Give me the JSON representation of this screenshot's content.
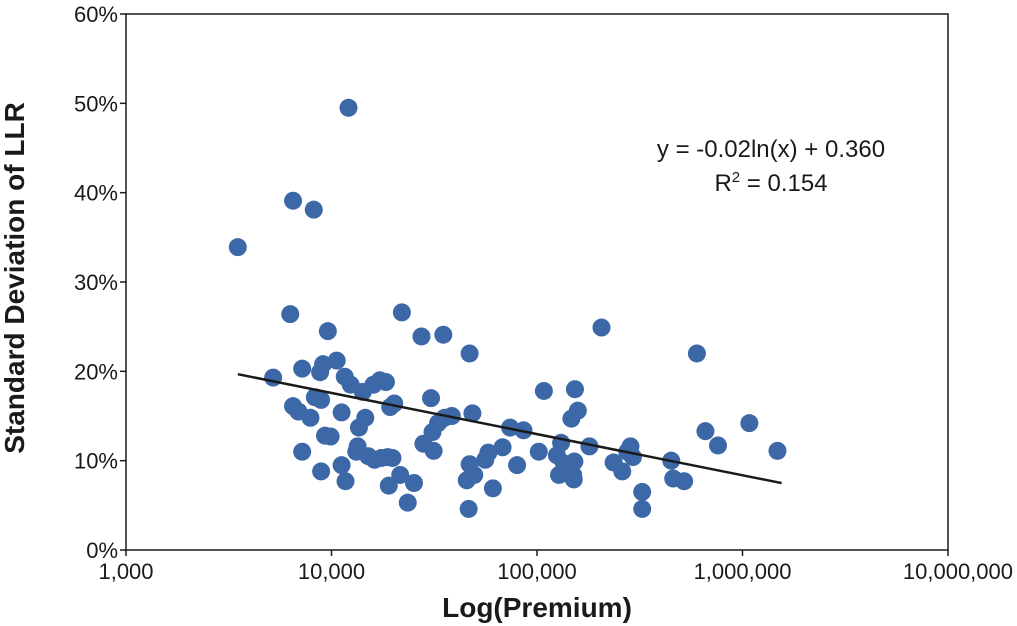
{
  "chart_data": {
    "type": "scatter",
    "xlabel": "Log(Premium)",
    "ylabel": "Standard Deviation of LLR",
    "x_scale": "log",
    "xlim": [
      1000,
      10000000
    ],
    "ylim": [
      0,
      0.6
    ],
    "x_ticks": [
      1000,
      10000,
      100000,
      1000000,
      10000000
    ],
    "x_tick_labels": [
      "1,000",
      "10,000",
      "100,000",
      "1,000,000",
      "10,000,000"
    ],
    "y_ticks": [
      0,
      0.1,
      0.2,
      0.3,
      0.4,
      0.5,
      0.6
    ],
    "y_tick_labels": [
      "0%",
      "10%",
      "20%",
      "30%",
      "40%",
      "50%",
      "60%"
    ],
    "grid": false,
    "point_color": "#3d68a8",
    "line_color": "#1a1a1a",
    "points": [
      {
        "x": 3500,
        "y": 0.339
      },
      {
        "x": 5200,
        "y": 0.193
      },
      {
        "x": 6300,
        "y": 0.264
      },
      {
        "x": 6500,
        "y": 0.391
      },
      {
        "x": 6500,
        "y": 0.161
      },
      {
        "x": 6900,
        "y": 0.155
      },
      {
        "x": 7200,
        "y": 0.203
      },
      {
        "x": 7200,
        "y": 0.11
      },
      {
        "x": 7900,
        "y": 0.148
      },
      {
        "x": 8200,
        "y": 0.381
      },
      {
        "x": 8300,
        "y": 0.171
      },
      {
        "x": 8800,
        "y": 0.199
      },
      {
        "x": 9100,
        "y": 0.208
      },
      {
        "x": 8900,
        "y": 0.168
      },
      {
        "x": 8900,
        "y": 0.088
      },
      {
        "x": 9300,
        "y": 0.128
      },
      {
        "x": 9600,
        "y": 0.245
      },
      {
        "x": 9900,
        "y": 0.127
      },
      {
        "x": 10600,
        "y": 0.212
      },
      {
        "x": 11200,
        "y": 0.154
      },
      {
        "x": 11200,
        "y": 0.095
      },
      {
        "x": 11600,
        "y": 0.194
      },
      {
        "x": 11700,
        "y": 0.077
      },
      {
        "x": 12100,
        "y": 0.495
      },
      {
        "x": 12400,
        "y": 0.185
      },
      {
        "x": 13200,
        "y": 0.11
      },
      {
        "x": 13400,
        "y": 0.116
      },
      {
        "x": 13600,
        "y": 0.137
      },
      {
        "x": 14200,
        "y": 0.177
      },
      {
        "x": 14600,
        "y": 0.148
      },
      {
        "x": 15100,
        "y": 0.105
      },
      {
        "x": 16000,
        "y": 0.185
      },
      {
        "x": 16200,
        "y": 0.101
      },
      {
        "x": 17200,
        "y": 0.19
      },
      {
        "x": 17500,
        "y": 0.103
      },
      {
        "x": 18400,
        "y": 0.188
      },
      {
        "x": 18800,
        "y": 0.104
      },
      {
        "x": 19300,
        "y": 0.16
      },
      {
        "x": 19000,
        "y": 0.072
      },
      {
        "x": 19800,
        "y": 0.103
      },
      {
        "x": 20200,
        "y": 0.164
      },
      {
        "x": 21600,
        "y": 0.084
      },
      {
        "x": 22000,
        "y": 0.266
      },
      {
        "x": 23500,
        "y": 0.053
      },
      {
        "x": 25200,
        "y": 0.075
      },
      {
        "x": 27400,
        "y": 0.239
      },
      {
        "x": 28000,
        "y": 0.119
      },
      {
        "x": 30500,
        "y": 0.17
      },
      {
        "x": 31000,
        "y": 0.132
      },
      {
        "x": 31400,
        "y": 0.111
      },
      {
        "x": 33000,
        "y": 0.142
      },
      {
        "x": 35000,
        "y": 0.241
      },
      {
        "x": 35500,
        "y": 0.148
      },
      {
        "x": 38500,
        "y": 0.15
      },
      {
        "x": 45500,
        "y": 0.078
      },
      {
        "x": 46500,
        "y": 0.046
      },
      {
        "x": 47000,
        "y": 0.22
      },
      {
        "x": 47000,
        "y": 0.096
      },
      {
        "x": 48500,
        "y": 0.153
      },
      {
        "x": 49500,
        "y": 0.084
      },
      {
        "x": 56000,
        "y": 0.101
      },
      {
        "x": 58000,
        "y": 0.109
      },
      {
        "x": 61000,
        "y": 0.069
      },
      {
        "x": 68000,
        "y": 0.115
      },
      {
        "x": 74000,
        "y": 0.137
      },
      {
        "x": 80000,
        "y": 0.095
      },
      {
        "x": 86000,
        "y": 0.134
      },
      {
        "x": 102000,
        "y": 0.11
      },
      {
        "x": 108000,
        "y": 0.178
      },
      {
        "x": 125000,
        "y": 0.106
      },
      {
        "x": 128000,
        "y": 0.084
      },
      {
        "x": 131000,
        "y": 0.12
      },
      {
        "x": 135000,
        "y": 0.097
      },
      {
        "x": 140000,
        "y": 0.091
      },
      {
        "x": 147000,
        "y": 0.147
      },
      {
        "x": 150000,
        "y": 0.084
      },
      {
        "x": 151000,
        "y": 0.079
      },
      {
        "x": 152000,
        "y": 0.099
      },
      {
        "x": 153000,
        "y": 0.18
      },
      {
        "x": 158000,
        "y": 0.156
      },
      {
        "x": 180000,
        "y": 0.116
      },
      {
        "x": 206000,
        "y": 0.249
      },
      {
        "x": 236000,
        "y": 0.098
      },
      {
        "x": 260000,
        "y": 0.088
      },
      {
        "x": 275000,
        "y": 0.11
      },
      {
        "x": 285000,
        "y": 0.116
      },
      {
        "x": 293000,
        "y": 0.104
      },
      {
        "x": 325000,
        "y": 0.065
      },
      {
        "x": 325000,
        "y": 0.046
      },
      {
        "x": 450000,
        "y": 0.1
      },
      {
        "x": 460000,
        "y": 0.08
      },
      {
        "x": 520000,
        "y": 0.077
      },
      {
        "x": 600000,
        "y": 0.22
      },
      {
        "x": 660000,
        "y": 0.133
      },
      {
        "x": 760000,
        "y": 0.117
      },
      {
        "x": 1080000,
        "y": 0.142
      },
      {
        "x": 1480000,
        "y": 0.111
      }
    ],
    "trendline": {
      "type": "logarithmic",
      "a": -0.02,
      "b": 0.36,
      "x_range": [
        3500,
        1550000
      ]
    },
    "annotations": {
      "equation": "y = -0.02ln(x) + 0.360",
      "r2_prefix": "R",
      "r2_sup": "2",
      "r2_value": " = 0.154"
    }
  }
}
